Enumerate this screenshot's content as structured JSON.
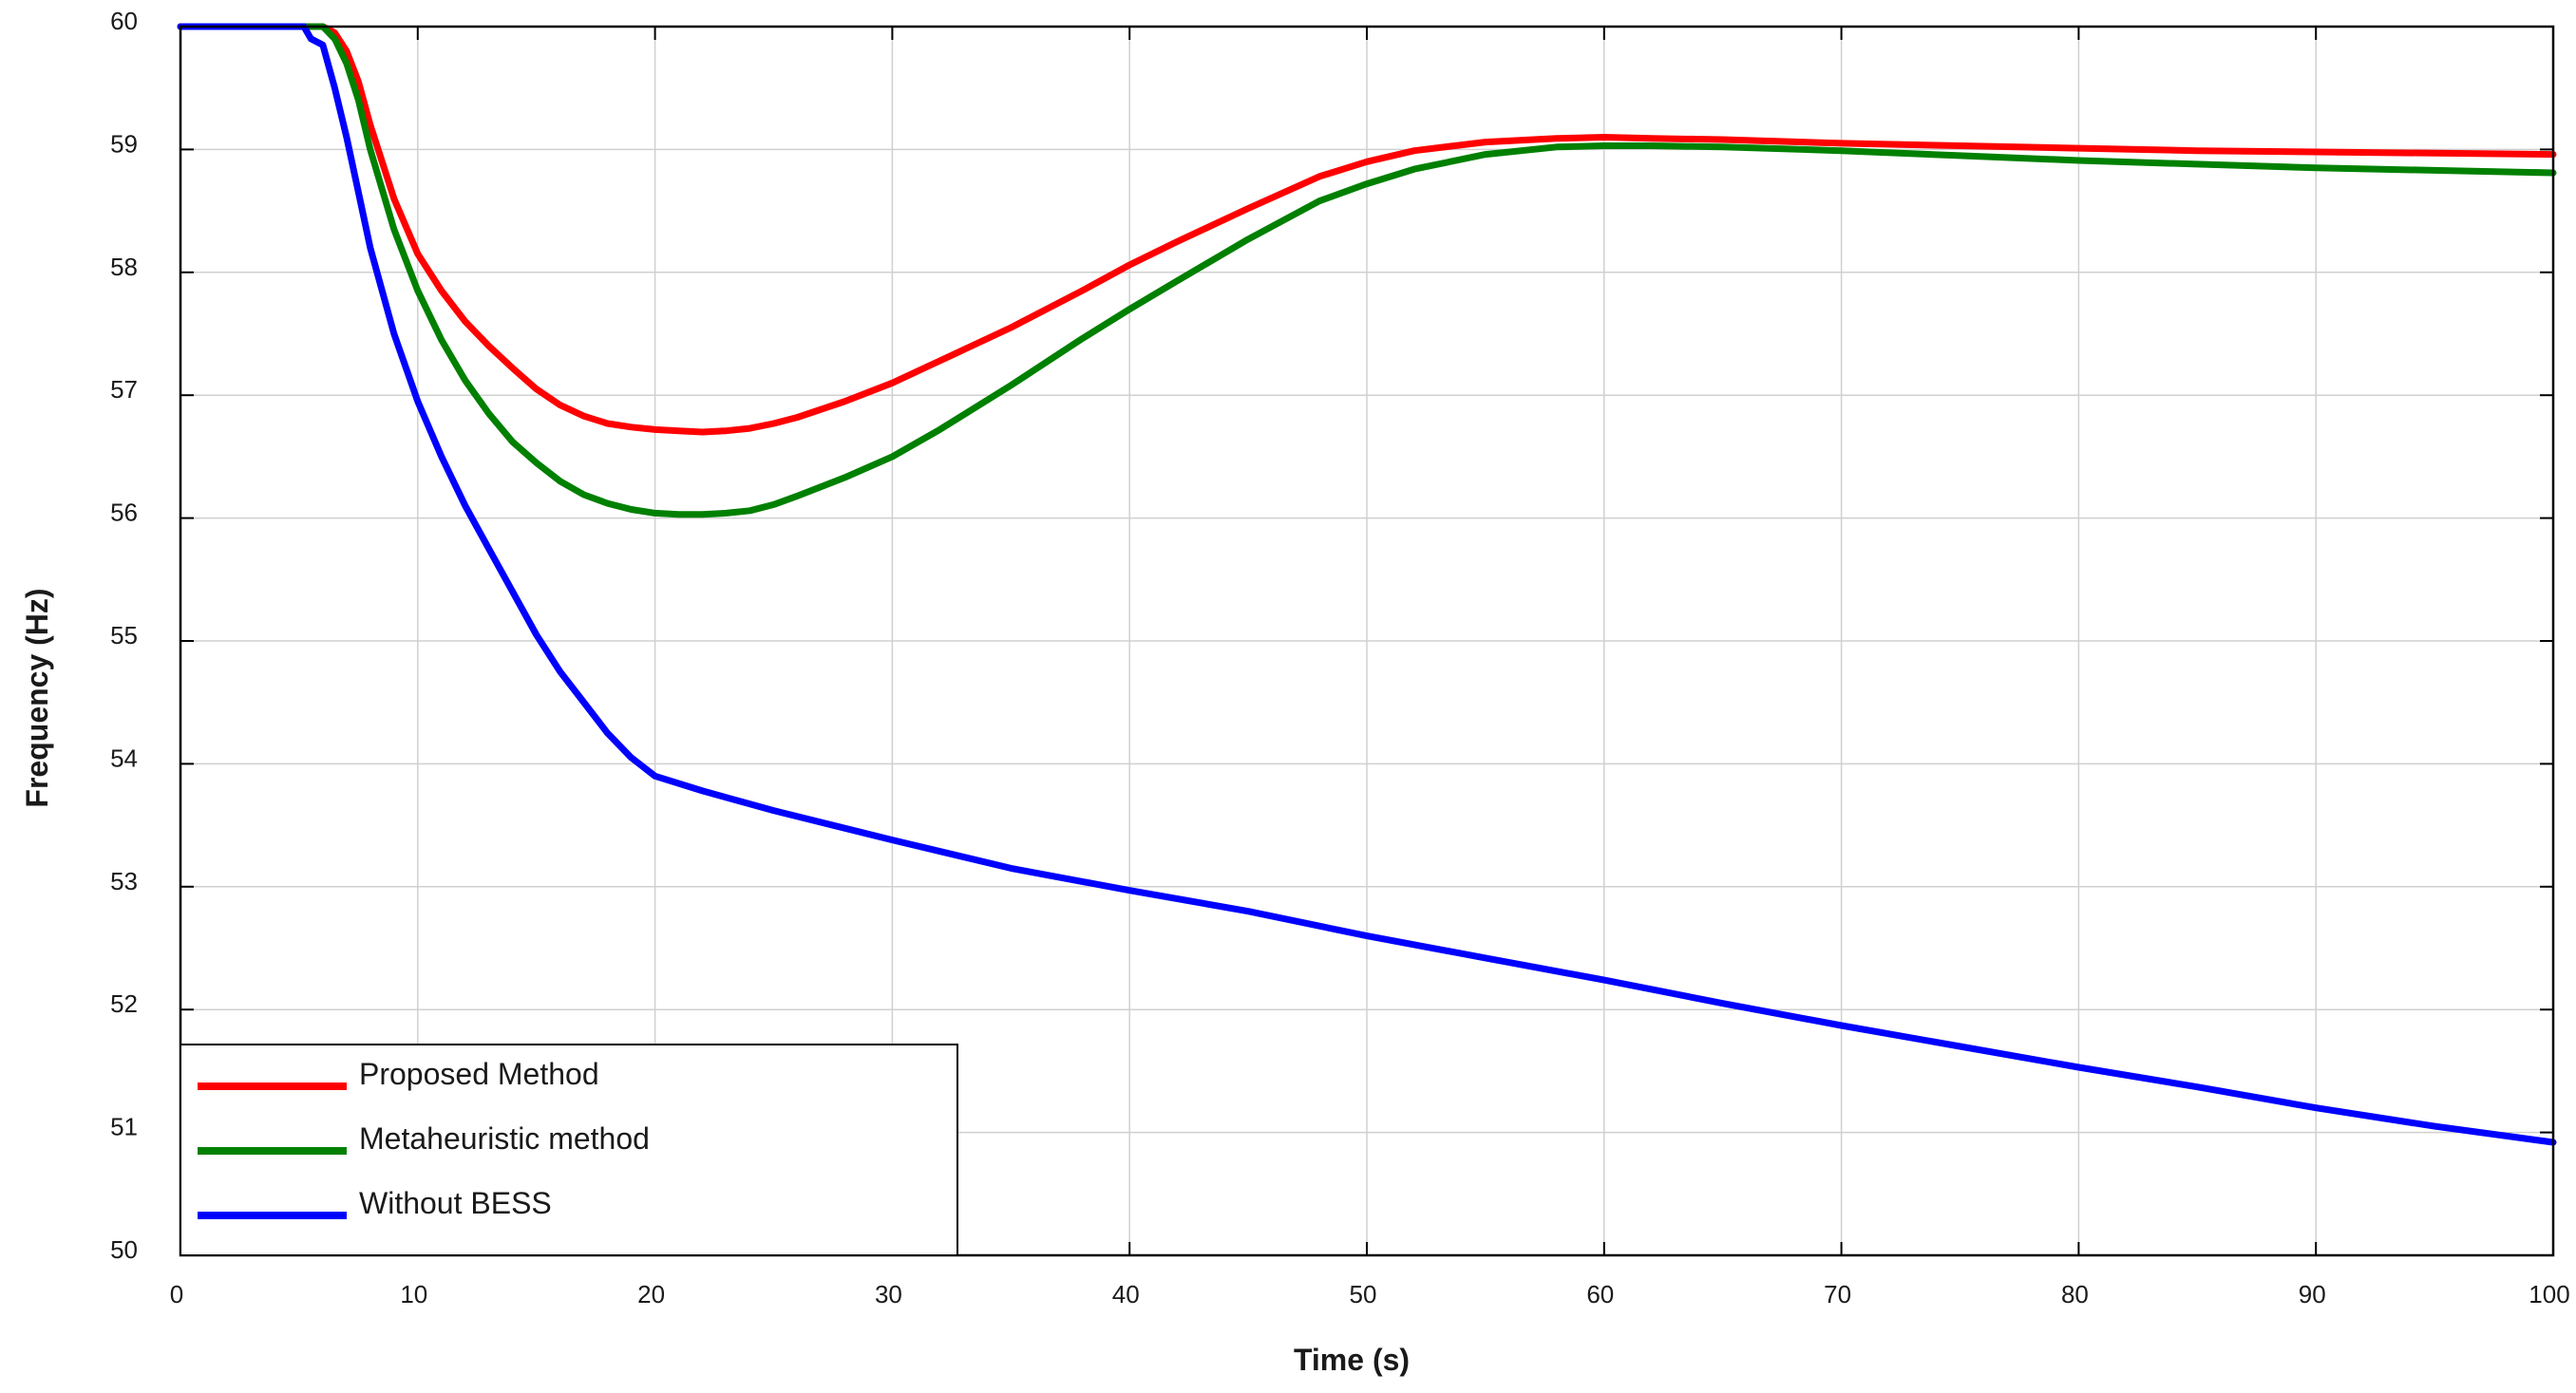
{
  "chart_data": {
    "type": "line",
    "xlabel": "Time (s)",
    "ylabel": "Frequency (Hz)",
    "xlim": [
      0,
      100
    ],
    "ylim": [
      50,
      60
    ],
    "xticks": [
      0,
      10,
      20,
      30,
      40,
      50,
      60,
      70,
      80,
      90,
      100
    ],
    "yticks": [
      50,
      51,
      52,
      53,
      54,
      55,
      56,
      57,
      58,
      59,
      60
    ],
    "grid": true,
    "legend_position": "bottom-left",
    "series": [
      {
        "name": "Proposed Method",
        "color": "#ff0000",
        "x": [
          0,
          5.5,
          6,
          6.5,
          7,
          7.5,
          8,
          9,
          10,
          11,
          12,
          13,
          14,
          15,
          16,
          17,
          18,
          19,
          20,
          21,
          22,
          23,
          24,
          25,
          26,
          28,
          30,
          32,
          35,
          38,
          40,
          42,
          45,
          48,
          50,
          52,
          55,
          58,
          60,
          62,
          65,
          70,
          75,
          80,
          85,
          90,
          95,
          100
        ],
        "y": [
          60,
          60,
          60,
          59.95,
          59.8,
          59.55,
          59.2,
          58.6,
          58.15,
          57.85,
          57.6,
          57.4,
          57.22,
          57.05,
          56.92,
          56.83,
          56.77,
          56.74,
          56.72,
          56.71,
          56.7,
          56.71,
          56.73,
          56.77,
          56.82,
          56.95,
          57.1,
          57.28,
          57.55,
          57.85,
          58.06,
          58.25,
          58.52,
          58.78,
          58.9,
          58.99,
          59.06,
          59.09,
          59.1,
          59.09,
          59.08,
          59.05,
          59.03,
          59.01,
          58.99,
          58.98,
          58.97,
          58.96
        ]
      },
      {
        "name": "Metaheuristic method",
        "color": "#008000",
        "x": [
          0,
          5.5,
          6,
          6.5,
          7,
          7.5,
          8,
          9,
          10,
          11,
          12,
          13,
          14,
          15,
          16,
          17,
          18,
          19,
          20,
          21,
          22,
          23,
          24,
          25,
          26,
          28,
          30,
          32,
          35,
          38,
          40,
          42,
          45,
          48,
          50,
          52,
          55,
          58,
          60,
          62,
          65,
          70,
          75,
          80,
          85,
          90,
          95,
          100
        ],
        "y": [
          60,
          60,
          60,
          59.9,
          59.7,
          59.4,
          59.0,
          58.35,
          57.85,
          57.45,
          57.12,
          56.85,
          56.62,
          56.45,
          56.3,
          56.19,
          56.12,
          56.07,
          56.04,
          56.03,
          56.03,
          56.04,
          56.06,
          56.11,
          56.18,
          56.33,
          56.5,
          56.72,
          57.08,
          57.46,
          57.7,
          57.93,
          58.27,
          58.58,
          58.72,
          58.84,
          58.96,
          59.02,
          59.03,
          59.03,
          59.02,
          58.99,
          58.95,
          58.91,
          58.88,
          58.85,
          58.83,
          58.81
        ]
      },
      {
        "name": "Without BESS",
        "color": "#0000ff",
        "x": [
          0,
          5.2,
          5.5,
          6,
          6.5,
          7,
          7.5,
          8,
          8.5,
          9,
          10,
          11,
          12,
          13,
          14,
          15,
          16,
          17,
          18,
          19,
          20,
          22,
          25,
          30,
          35,
          40,
          45,
          50,
          55,
          60,
          65,
          70,
          75,
          80,
          85,
          90,
          95,
          100
        ],
        "y": [
          60,
          60,
          59.9,
          59.85,
          59.5,
          59.1,
          58.65,
          58.2,
          57.85,
          57.5,
          56.95,
          56.5,
          56.1,
          55.75,
          55.4,
          55.05,
          54.75,
          54.5,
          54.25,
          54.05,
          53.9,
          53.78,
          53.62,
          53.38,
          53.15,
          52.97,
          52.8,
          52.6,
          52.42,
          52.24,
          52.05,
          51.87,
          51.7,
          51.53,
          51.37,
          51.2,
          51.05,
          50.92
        ]
      }
    ]
  }
}
